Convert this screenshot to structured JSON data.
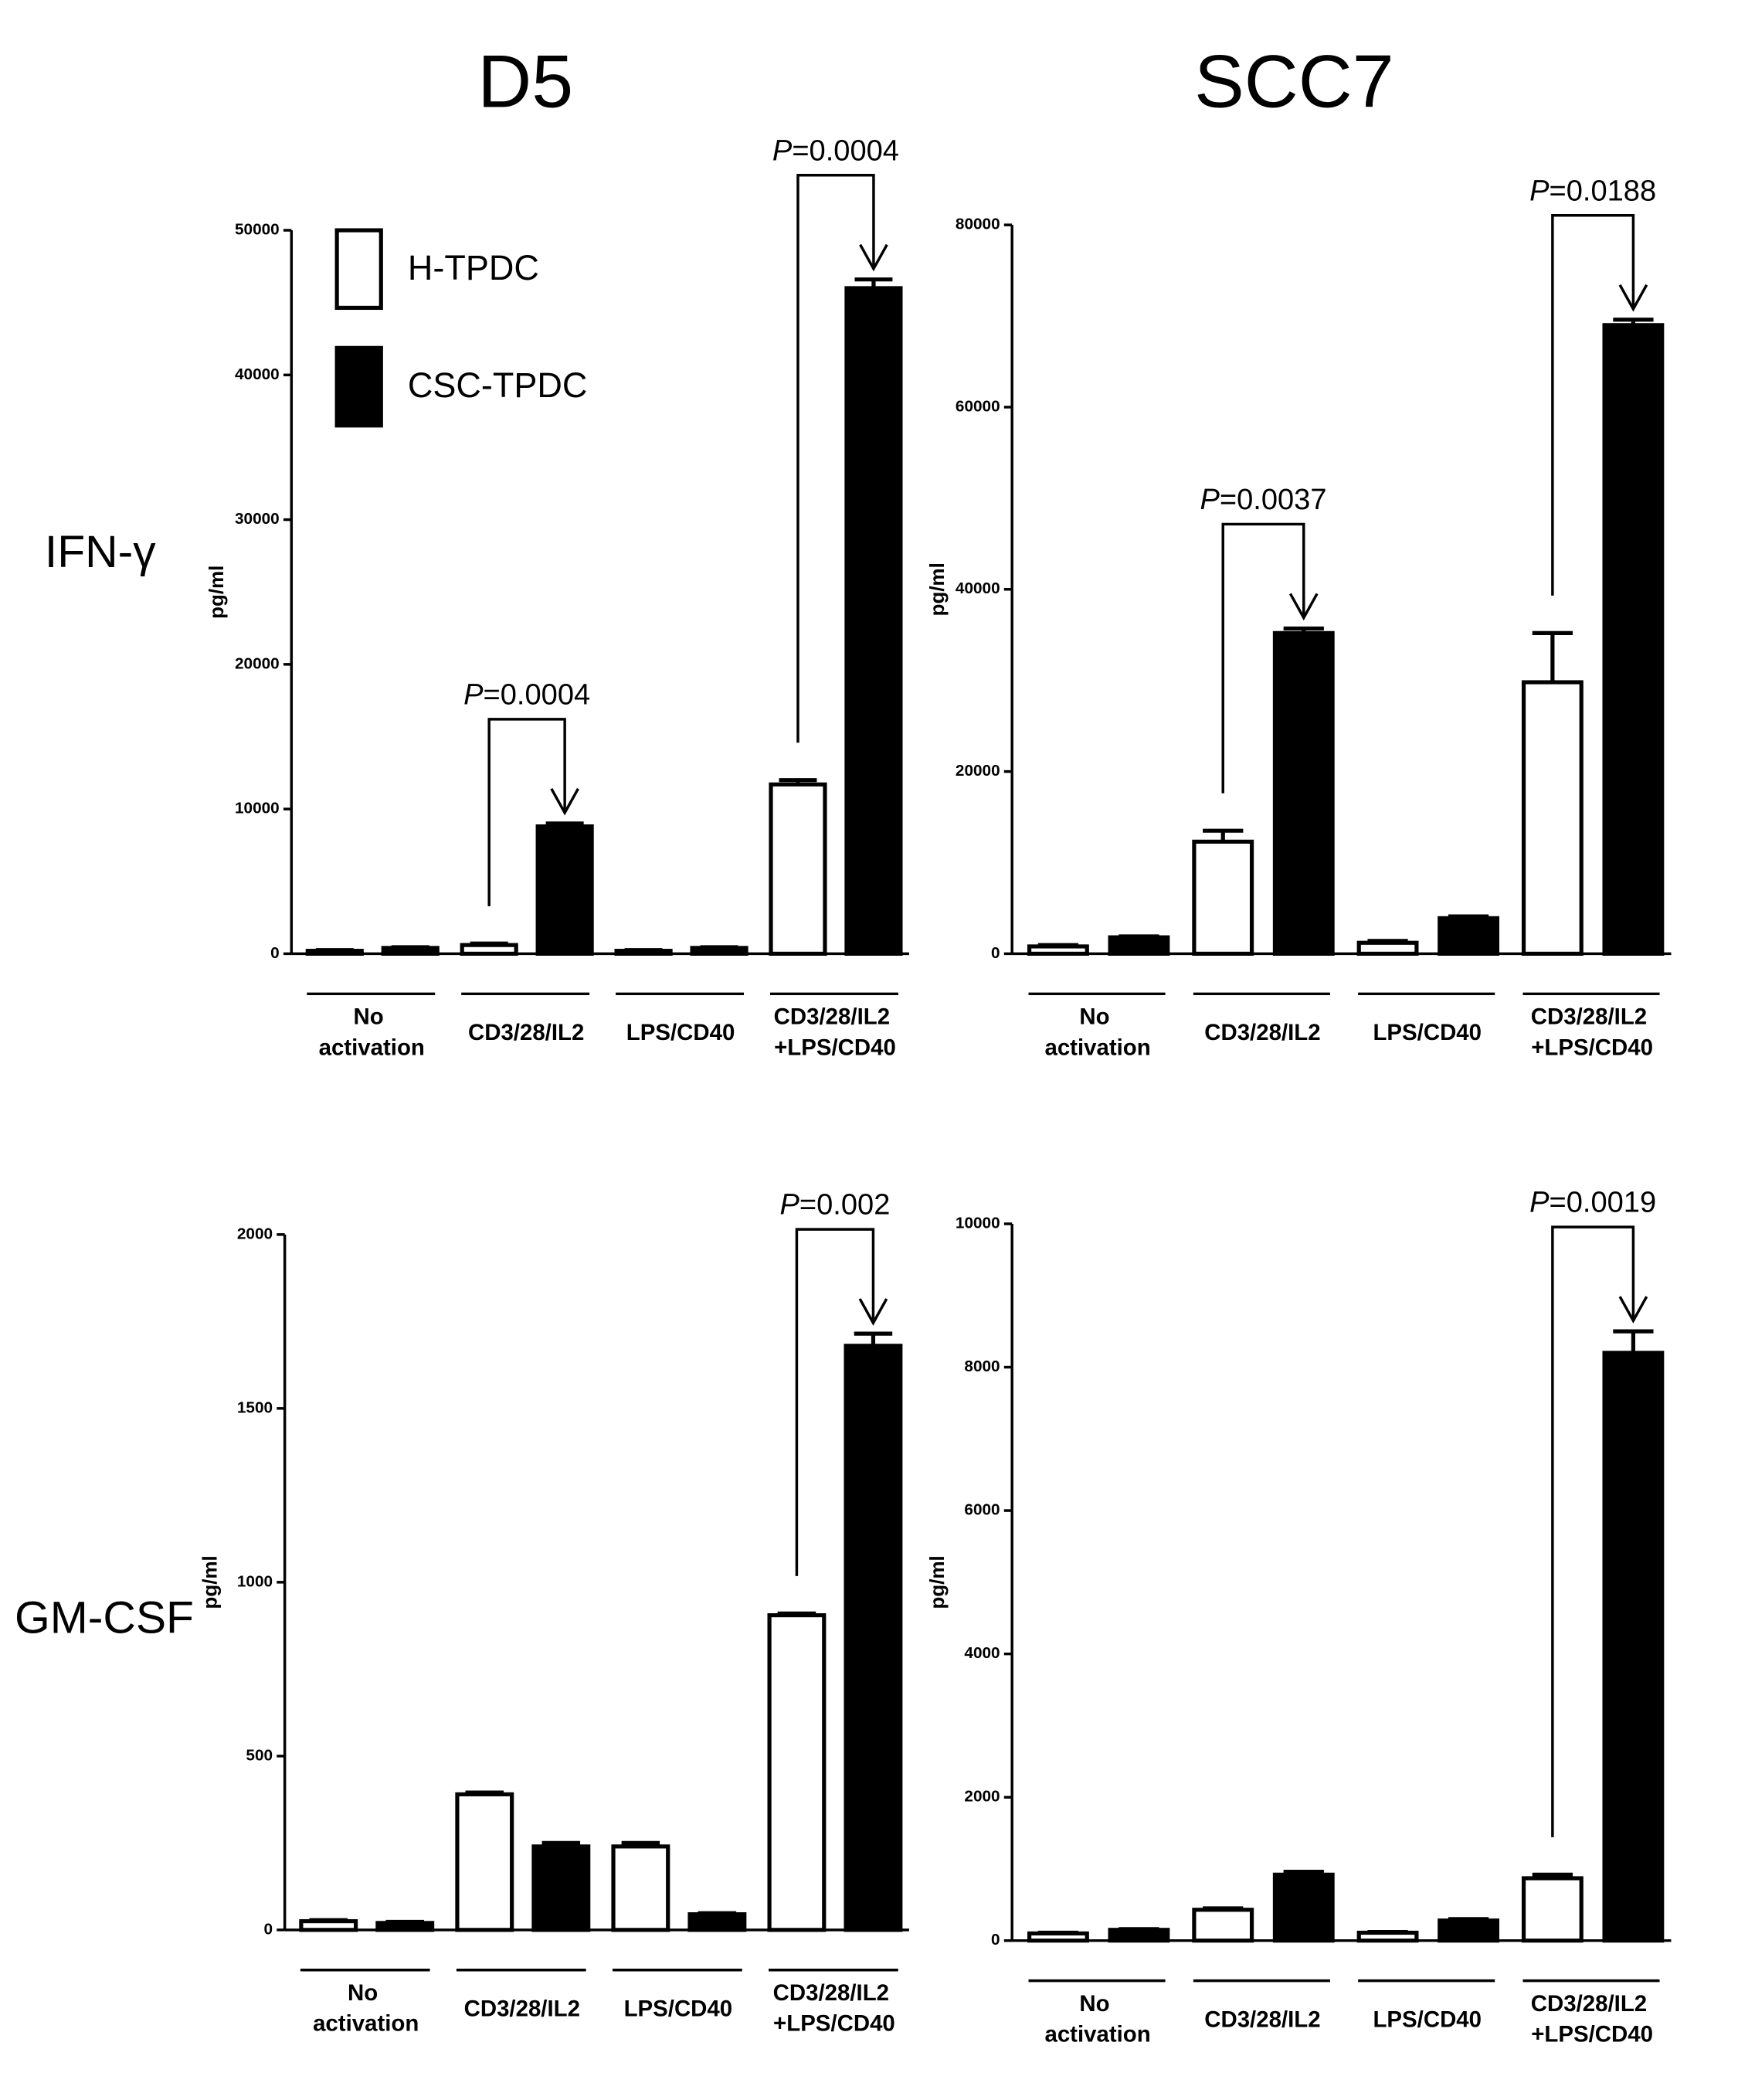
{
  "column_titles": [
    "D5",
    "SCC7"
  ],
  "row_titles": [
    "IFN-γ",
    "GM-CSF"
  ],
  "chart_data": [
    {
      "type": "bar",
      "ylabel": "pg/ml",
      "legend": true,
      "categories": [
        "No activation",
        "CD3/28/IL2",
        "LPS/CD40",
        "CD3/28/IL2 +LPS/CD40"
      ],
      "series": [
        {
          "name": "H-TPDC",
          "color": "#ffffff",
          "values": [
            200,
            600,
            200,
            11700
          ],
          "errors": [
            50,
            100,
            50,
            300
          ]
        },
        {
          "name": "CSC-TPDC",
          "color": "#000000",
          "values": [
            400,
            8800,
            400,
            46000
          ],
          "errors": [
            50,
            200,
            50,
            600
          ]
        }
      ],
      "ylim": [
        0,
        50000
      ],
      "yticks": [
        0,
        10000,
        20000,
        30000,
        40000,
        50000
      ],
      "annotations": [
        {
          "text": "P=0.0004",
          "category": 1
        },
        {
          "text": "P=0.0004",
          "category": 3
        }
      ]
    },
    {
      "type": "bar",
      "ylabel": "pg/ml",
      "categories": [
        "No activation",
        "CD3/28/IL2",
        "LPS/CD40",
        "CD3/28/IL2 +LPS/CD40"
      ],
      "series": [
        {
          "color": "#ffffff",
          "values": [
            800,
            12300,
            1200,
            29800
          ],
          "errors": [
            150,
            1200,
            200,
            5400
          ]
        },
        {
          "color": "#000000",
          "values": [
            1800,
            35200,
            3900,
            69000
          ],
          "errors": [
            100,
            500,
            200,
            600
          ]
        }
      ],
      "ylim": [
        0,
        80000
      ],
      "yticks": [
        0,
        20000,
        40000,
        60000,
        80000
      ],
      "annotations": [
        {
          "text": "P=0.0037",
          "category": 1
        },
        {
          "text": "P=0.0188",
          "category": 3
        }
      ]
    },
    {
      "type": "bar",
      "ylabel": "pg/ml",
      "categories": [
        "No activation",
        "CD3/28/IL2",
        "LPS/CD40",
        "CD3/28/IL2 +LPS/CD40"
      ],
      "series": [
        {
          "color": "#ffffff",
          "values": [
            25,
            390,
            240,
            905
          ],
          "errors": [
            3,
            5,
            10,
            5
          ]
        },
        {
          "color": "#000000",
          "values": [
            20,
            240,
            45,
            1680
          ],
          "errors": [
            3,
            10,
            3,
            35
          ]
        }
      ],
      "ylim": [
        0,
        2000
      ],
      "yticks": [
        0,
        500,
        1000,
        1500,
        2000
      ],
      "annotations": [
        {
          "text": "P=0.002",
          "category": 3
        }
      ]
    },
    {
      "type": "bar",
      "ylabel": "pg/ml",
      "categories": [
        "No activation",
        "CD3/28/IL2",
        "LPS/CD40",
        "CD3/28/IL2 +LPS/CD40"
      ],
      "series": [
        {
          "color": "#ffffff",
          "values": [
            100,
            430,
            110,
            870
          ],
          "errors": [
            10,
            20,
            10,
            50
          ]
        },
        {
          "color": "#000000",
          "values": [
            150,
            920,
            280,
            8200
          ],
          "errors": [
            10,
            40,
            20,
            300
          ]
        }
      ],
      "ylim": [
        0,
        10000
      ],
      "yticks": [
        0,
        2000,
        4000,
        6000,
        8000,
        10000
      ],
      "annotations": [
        {
          "text": "P=0.0019",
          "category": 3
        }
      ]
    }
  ]
}
